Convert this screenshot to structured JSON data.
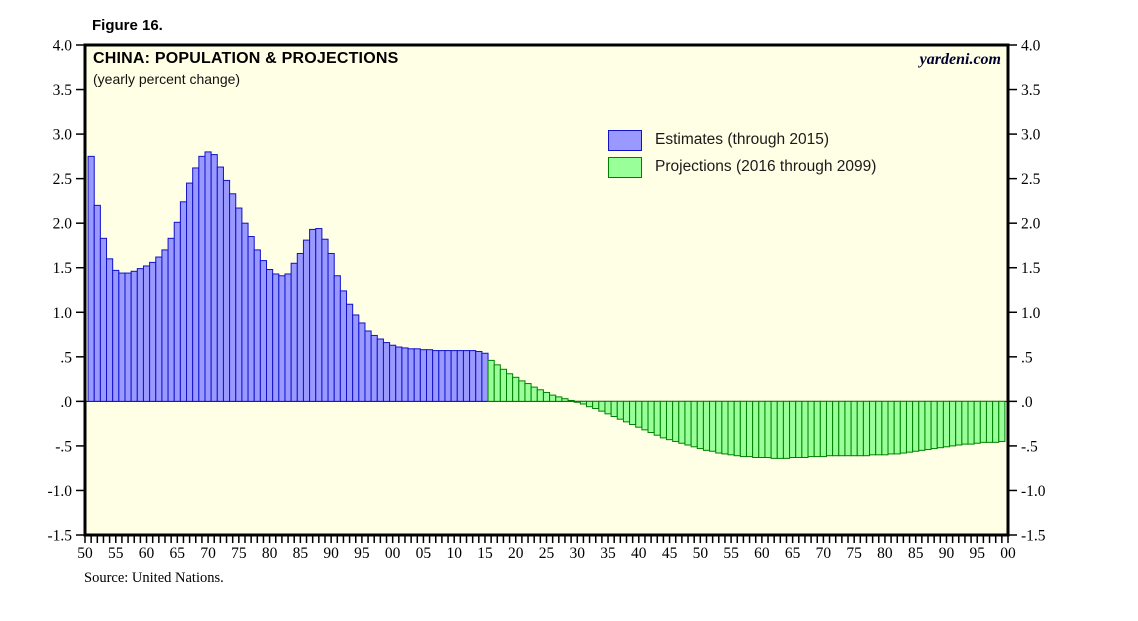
{
  "figure_label": "Figure 16.",
  "chart": {
    "title": "CHINA: POPULATION & PROJECTIONS",
    "subtitle": "(yearly percent change)",
    "brand": "yardeni.com",
    "source": "Source: United Nations.",
    "legend": [
      {
        "label": "Estimates (through 2015)",
        "fill": "#9999ff",
        "border": "#1111cc"
      },
      {
        "label": "Projections (2016 through 2099)",
        "fill": "#99ff99",
        "border": "#008000"
      }
    ]
  },
  "colors": {
    "plot_background": "#ffffe5",
    "frame": "#000000",
    "estimates_fill": "#9999ff",
    "estimates_border": "#1111cc",
    "projections_fill": "#99ff99",
    "projections_border": "#008000",
    "zero_line": "#000000"
  },
  "chart_data": {
    "type": "bar",
    "title": "CHINA: POPULATION & PROJECTIONS",
    "subtitle": "(yearly percent change)",
    "xlabel": "",
    "ylabel": "yearly percent change",
    "ylim": [
      -1.5,
      4.0
    ],
    "x_range_years": [
      1950,
      2100
    ],
    "grid": false,
    "legend_position": "upper middle-right inside",
    "y_ticks": [
      {
        "v": 4.0,
        "label": "4.0"
      },
      {
        "v": 3.5,
        "label": "3.5"
      },
      {
        "v": 3.0,
        "label": "3.0"
      },
      {
        "v": 2.5,
        "label": "2.5"
      },
      {
        "v": 2.0,
        "label": "2.0"
      },
      {
        "v": 1.5,
        "label": "1.5"
      },
      {
        "v": 1.0,
        "label": "1.0"
      },
      {
        "v": 0.5,
        "label": ".5"
      },
      {
        "v": 0.0,
        "label": ".0"
      },
      {
        "v": -0.5,
        "label": "-.5"
      },
      {
        "v": -1.0,
        "label": "-1.0"
      },
      {
        "v": -1.5,
        "label": "-1.5"
      }
    ],
    "x_ticks": [
      {
        "year": 1950,
        "label": "50"
      },
      {
        "year": 1955,
        "label": "55"
      },
      {
        "year": 1960,
        "label": "60"
      },
      {
        "year": 1965,
        "label": "65"
      },
      {
        "year": 1970,
        "label": "70"
      },
      {
        "year": 1975,
        "label": "75"
      },
      {
        "year": 1980,
        "label": "80"
      },
      {
        "year": 1985,
        "label": "85"
      },
      {
        "year": 1990,
        "label": "90"
      },
      {
        "year": 1995,
        "label": "95"
      },
      {
        "year": 2000,
        "label": "00"
      },
      {
        "year": 2005,
        "label": "05"
      },
      {
        "year": 2010,
        "label": "10"
      },
      {
        "year": 2015,
        "label": "15"
      },
      {
        "year": 2020,
        "label": "20"
      },
      {
        "year": 2025,
        "label": "25"
      },
      {
        "year": 2030,
        "label": "30"
      },
      {
        "year": 2035,
        "label": "35"
      },
      {
        "year": 2040,
        "label": "40"
      },
      {
        "year": 2045,
        "label": "45"
      },
      {
        "year": 2050,
        "label": "50"
      },
      {
        "year": 2055,
        "label": "55"
      },
      {
        "year": 2060,
        "label": "60"
      },
      {
        "year": 2065,
        "label": "65"
      },
      {
        "year": 2070,
        "label": "70"
      },
      {
        "year": 2075,
        "label": "75"
      },
      {
        "year": 2080,
        "label": "80"
      },
      {
        "year": 2085,
        "label": "85"
      },
      {
        "year": 2090,
        "label": "90"
      },
      {
        "year": 2095,
        "label": "95"
      },
      {
        "year": 2100,
        "label": "00"
      }
    ],
    "minor_x_tick_every_years": 1,
    "series": [
      {
        "name": "Estimates (through 2015)",
        "start_year": 1951,
        "end_year": 2015,
        "fill": "#9999ff",
        "border": "#1111cc",
        "values": [
          2.75,
          2.2,
          1.83,
          1.6,
          1.47,
          1.44,
          1.44,
          1.46,
          1.49,
          1.52,
          1.56,
          1.62,
          1.7,
          1.83,
          2.01,
          2.24,
          2.45,
          2.62,
          2.75,
          2.8,
          2.77,
          2.63,
          2.48,
          2.33,
          2.17,
          2.0,
          1.85,
          1.7,
          1.58,
          1.48,
          1.43,
          1.41,
          1.43,
          1.55,
          1.66,
          1.81,
          1.93,
          1.94,
          1.82,
          1.66,
          1.41,
          1.24,
          1.09,
          0.97,
          0.88,
          0.79,
          0.74,
          0.7,
          0.66,
          0.63,
          0.61,
          0.6,
          0.59,
          0.59,
          0.58,
          0.58,
          0.57,
          0.57,
          0.57,
          0.57,
          0.57,
          0.57,
          0.57,
          0.56,
          0.54
        ]
      },
      {
        "name": "Projections (2016 through 2099)",
        "start_year": 2016,
        "end_year": 2099,
        "fill": "#99ff99",
        "border": "#008000",
        "values": [
          0.46,
          0.41,
          0.36,
          0.31,
          0.27,
          0.23,
          0.2,
          0.16,
          0.13,
          0.1,
          0.07,
          0.05,
          0.03,
          0.01,
          -0.01,
          -0.03,
          -0.06,
          -0.08,
          -0.11,
          -0.14,
          -0.17,
          -0.2,
          -0.23,
          -0.26,
          -0.29,
          -0.32,
          -0.35,
          -0.38,
          -0.41,
          -0.43,
          -0.45,
          -0.47,
          -0.49,
          -0.51,
          -0.53,
          -0.55,
          -0.56,
          -0.58,
          -0.59,
          -0.6,
          -0.61,
          -0.62,
          -0.62,
          -0.63,
          -0.63,
          -0.63,
          -0.64,
          -0.64,
          -0.64,
          -0.63,
          -0.63,
          -0.63,
          -0.62,
          -0.62,
          -0.62,
          -0.61,
          -0.61,
          -0.61,
          -0.61,
          -0.61,
          -0.61,
          -0.61,
          -0.6,
          -0.6,
          -0.6,
          -0.59,
          -0.59,
          -0.58,
          -0.57,
          -0.56,
          -0.55,
          -0.54,
          -0.53,
          -0.52,
          -0.51,
          -0.5,
          -0.49,
          -0.48,
          -0.48,
          -0.47,
          -0.46,
          -0.46,
          -0.46,
          -0.45
        ]
      }
    ]
  }
}
